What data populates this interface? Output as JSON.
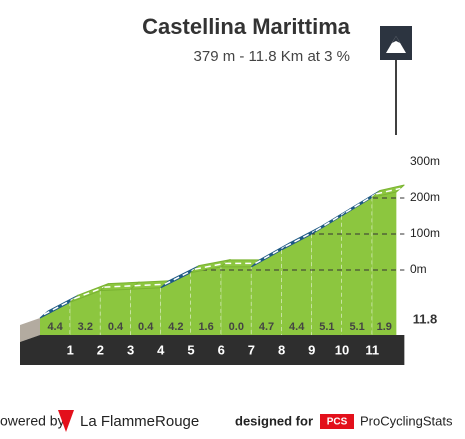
{
  "chart_data": {
    "type": "profile",
    "title": "Castellina Marittima",
    "subtitle": "379 m - 11.8 Km at 3 %",
    "x": [
      1,
      2,
      3,
      4,
      5,
      6,
      7,
      8,
      9,
      10,
      11,
      11.8
    ],
    "values": [
      4.4,
      3.2,
      0.4,
      0.4,
      4.2,
      1.6,
      0.0,
      4.7,
      4.4,
      5.1,
      5.1,
      1.9
    ],
    "value_labels": [
      "4.4",
      "3.2",
      "0.4",
      "0.4",
      "4.2",
      "1.6",
      "0.0",
      "4.7",
      "4.4",
      "5.1",
      "5.1",
      "1.9"
    ],
    "yticks": [
      {
        "value": 300,
        "label": "300m"
      },
      {
        "value": 200,
        "label": "200m"
      },
      {
        "value": 100,
        "label": "100m"
      },
      {
        "value": 0,
        "label": "0m"
      }
    ],
    "color": "#8cc63f",
    "steep_color": "#1f5a85"
  },
  "footer": {
    "powered": "owered by",
    "brand": "La FlammeRouge",
    "designed": "designed for",
    "pcs": "PCS",
    "pcs_name": "ProCyclingStats"
  }
}
